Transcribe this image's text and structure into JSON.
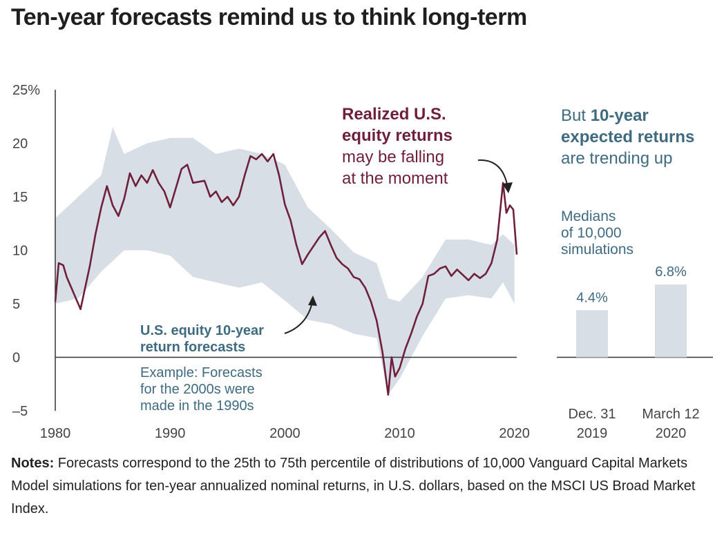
{
  "title": "Ten-year forecasts remind us to think long-term",
  "notes": {
    "label": "Notes:",
    "text": "Forecasts correspond to the 25th to 75th percentile of distributions of 10,000 Vanguard Capital Markets Model simulations for ten-year annualized nominal returns, in U.S. dollars, based on the MSCI US Broad Market Index."
  },
  "colors": {
    "realized": "#6e1f3a",
    "forecast_band": "#d8dee5",
    "annotation_blue": "#3f6b80",
    "bar": "#d8dee5",
    "axis": "#333333"
  },
  "chart_data": [
    {
      "type": "line",
      "x_range": [
        1980,
        2020.2
      ],
      "ylim": [
        -5,
        25
      ],
      "x_ticks": [
        1980,
        1990,
        2000,
        2010,
        2020
      ],
      "x_tick_labels": [
        "1980",
        "1990",
        "2000",
        "2010",
        "2020"
      ],
      "y_ticks": [
        -5,
        0,
        5,
        10,
        15,
        20,
        25
      ],
      "y_tick_labels": [
        "–5",
        "0",
        "5",
        "10",
        "15",
        "20",
        "25%"
      ],
      "grid": false,
      "series": [
        {
          "name": "Realized U.S. equity returns",
          "x": [
            1980,
            1980.3,
            1980.7,
            1981,
            1981.4,
            1981.8,
            1982.2,
            1982.6,
            1983,
            1983.5,
            1984,
            1984.5,
            1985,
            1985.5,
            1986,
            1986.5,
            1987,
            1987.5,
            1988,
            1988.5,
            1989,
            1989.5,
            1990,
            1990.5,
            1991,
            1991.5,
            1992,
            1992.5,
            1993,
            1993.5,
            1994,
            1994.5,
            1995,
            1995.5,
            1996,
            1996.5,
            1997,
            1997.5,
            1998,
            1998.5,
            1999,
            1999.5,
            2000,
            2000.5,
            2001,
            2001.5,
            2002,
            2002.5,
            2003,
            2003.5,
            2004,
            2004.5,
            2005,
            2005.5,
            2006,
            2006.5,
            2007,
            2007.5,
            2008,
            2008.5,
            2009,
            2009.3,
            2009.6,
            2010,
            2010.5,
            2011,
            2011.5,
            2012,
            2012.5,
            2013,
            2013.5,
            2014,
            2014.5,
            2015,
            2015.5,
            2016,
            2016.5,
            2017,
            2017.5,
            2018,
            2018.5,
            2019,
            2019.3,
            2019.6,
            2019.9,
            2020.2
          ],
          "values": [
            5.2,
            8.8,
            8.6,
            7.5,
            6.5,
            5.5,
            4.5,
            6.5,
            8.5,
            11.5,
            14.0,
            16.0,
            14.2,
            13.2,
            14.8,
            17.2,
            16.0,
            17.0,
            16.3,
            17.5,
            16.3,
            15.5,
            14.0,
            15.8,
            17.6,
            18.0,
            16.3,
            16.4,
            16.5,
            15.0,
            15.5,
            14.5,
            15.0,
            14.2,
            15.0,
            17.0,
            18.8,
            18.5,
            19.0,
            18.3,
            19.0,
            17.0,
            14.3,
            12.8,
            10.5,
            8.7,
            9.6,
            10.4,
            11.2,
            11.8,
            10.5,
            9.3,
            8.7,
            8.3,
            7.5,
            7.3,
            6.5,
            5.2,
            3.4,
            0.5,
            -3.5,
            0.0,
            -1.8,
            -1.0,
            0.8,
            2.2,
            3.8,
            5.0,
            7.6,
            7.8,
            8.3,
            8.5,
            7.6,
            8.2,
            7.7,
            7.2,
            7.8,
            7.4,
            7.8,
            8.8,
            11.0,
            16.3,
            13.5,
            14.2,
            13.8,
            9.6
          ]
        }
      ],
      "band": {
        "name": "U.S. equity 10-year return forecasts",
        "x": [
          1980,
          1982,
          1984,
          1985,
          1986,
          1988,
          1990,
          1992,
          1994,
          1996,
          1998,
          2000,
          2002,
          2004,
          2006,
          2008,
          2009,
          2010,
          2012,
          2014,
          2016,
          2018,
          2019,
          2020
        ],
        "upper": [
          13,
          15,
          17,
          21.5,
          19,
          20,
          20.5,
          20.5,
          19,
          19.5,
          19,
          18,
          14,
          12,
          9.8,
          8.8,
          5.5,
          5.2,
          7.5,
          11,
          11,
          10.5,
          11.5,
          10.5
        ],
        "lower": [
          5,
          5.5,
          8,
          9,
          10,
          10,
          9.5,
          7.5,
          7,
          6.5,
          7,
          5.3,
          3.5,
          3.1,
          2.2,
          1.8,
          -3.5,
          -2.0,
          2,
          5.5,
          5.8,
          5.5,
          7.0,
          5.0
        ]
      },
      "annotations": {
        "realized_bold_1": "Realized U.S.",
        "realized_bold_2": "equity returns",
        "realized_1": "may be falling",
        "realized_2": "at the moment",
        "forecast_bold_1": "U.S. equity 10-year",
        "forecast_bold_2": "return forecasts",
        "example_1": "Example: Forecasts",
        "example_2": "for the 2000s were",
        "example_3": "made in the 1990s"
      }
    },
    {
      "type": "bar",
      "categories": [
        "Dec. 31 2019",
        "March 12 2020"
      ],
      "category_lines": [
        [
          "Dec. 31",
          "2019"
        ],
        [
          "March 12",
          "2020"
        ]
      ],
      "values": [
        4.4,
        6.8
      ],
      "value_labels": [
        "4.4%",
        "6.8%"
      ],
      "ylim": [
        -5,
        25
      ],
      "annotations": {
        "but": "But ",
        "bold_1": "10-year",
        "bold_2": "expected returns",
        "normal_3": "are trending up",
        "medians_1": "Medians",
        "medians_2": "of 10,000",
        "medians_3": "simulations"
      }
    }
  ]
}
